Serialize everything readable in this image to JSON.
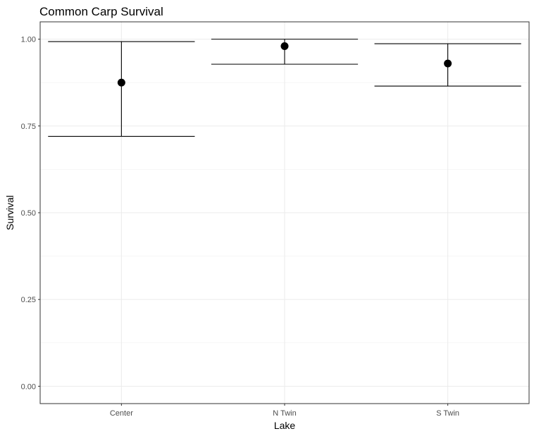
{
  "chart_data": {
    "type": "scatter",
    "title": "Common Carp Survival",
    "xlabel": "Lake",
    "ylabel": "Survival",
    "categories": [
      "Center",
      "N Twin",
      "S Twin"
    ],
    "values": [
      0.875,
      0.98,
      0.93
    ],
    "lower": [
      0.72,
      0.928,
      0.865
    ],
    "upper": [
      0.993,
      1.0,
      0.987
    ],
    "ylim": [
      -0.05,
      1.05
    ],
    "yticks": [
      0.0,
      0.25,
      0.5,
      0.75,
      1.0
    ],
    "ytick_labels": [
      "0.00",
      "0.25",
      "0.50",
      "0.75",
      "1.00"
    ],
    "grid": true,
    "legend": "none"
  }
}
